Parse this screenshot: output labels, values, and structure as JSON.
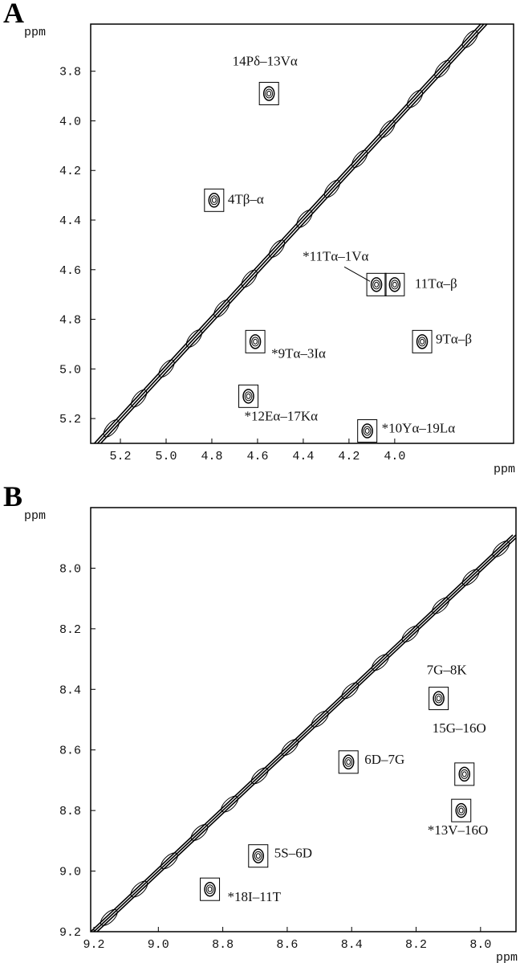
{
  "chart_data": [
    {
      "type": "scatter",
      "panel_label": "A",
      "x_label": "ppm",
      "y_label": "ppm",
      "xlim": [
        5.33,
        3.48
      ],
      "ylim": [
        5.3,
        3.61
      ],
      "xticks": [
        5.2,
        {
          "value": 5,
          "label": "5.0"
        },
        4.8,
        4.6,
        4.4,
        4.2,
        {
          "value": 4,
          "label": "4.0"
        }
      ],
      "yticks": [
        3.8,
        {
          "value": 4,
          "label": "4.0"
        },
        4.2,
        4.4,
        4.6,
        4.8,
        {
          "value": 5,
          "label": "5.0"
        },
        5.2
      ],
      "x": [
        4.55,
        4.79,
        4.08,
        4.0,
        3.88,
        4.61,
        4.64,
        4.12
      ],
      "values": [
        3.89,
        4.32,
        4.66,
        4.66,
        4.89,
        4.89,
        5.11,
        5.25
      ],
      "labels": [
        "14Pδ–13Vα",
        "4Tβ–α",
        "*11Tα–1Vα",
        "11Tα–β",
        "9Tα–β",
        "*9Tα–3Iα",
        "*12Eα–17Kα",
        "*10Yα–19Lα"
      ]
    },
    {
      "type": "scatter",
      "panel_label": "B",
      "x_label": "ppm",
      "y_label": "ppm",
      "xlim": [
        9.21,
        7.89
      ],
      "ylim": [
        9.2,
        7.8
      ],
      "xticks": [
        9.2,
        {
          "value": 9,
          "label": "9.0"
        },
        8.8,
        8.6,
        8.4,
        8.2,
        {
          "value": 8,
          "label": "8.0"
        }
      ],
      "yticks": [
        {
          "value": 8,
          "label": "8.0"
        },
        8.2,
        8.4,
        8.6,
        8.8,
        {
          "value": 9,
          "label": "9.0"
        },
        9.2
      ],
      "x": [
        8.13,
        8.05,
        8.06,
        8.41,
        8.69,
        8.84
      ],
      "values": [
        8.43,
        8.68,
        8.8,
        8.64,
        8.95,
        9.06
      ],
      "labels": [
        "7G–8K",
        "15G–16O",
        "*13V–16O",
        "6D–7G",
        "5S–6D",
        "*18I–11T"
      ]
    }
  ]
}
